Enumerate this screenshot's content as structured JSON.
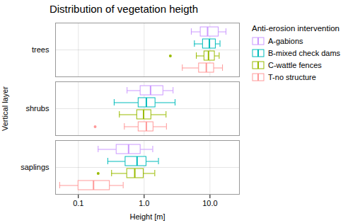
{
  "chart_data": {
    "type": "boxplot",
    "orientation": "horizontal",
    "title": "Distribution of vegetation heigth",
    "xlabel": "Height [m]",
    "ylabel": "Vertical layer",
    "legend_title": "Anti-erosion intervention",
    "legend": "right",
    "grid": true,
    "log": "x",
    "categories": [
      "saplings",
      "shrubs",
      "trees"
    ],
    "xlim": [
      0.045,
      28
    ],
    "xticks": [
      0.1,
      {
        "value": 1,
        "label": "1.0"
      },
      {
        "value": 10,
        "label": "10.0"
      }
    ],
    "series": [
      {
        "name": "A-gabions",
        "color": "#CC99FF",
        "values": [
          {
            "whislo": 0.2,
            "q1": 0.38,
            "med": 0.58,
            "q3": 0.88,
            "whishi": 1.35,
            "fliers": []
          },
          {
            "whislo": 0.55,
            "q1": 0.88,
            "med": 1.25,
            "q3": 1.95,
            "whishi": 2.75,
            "fliers": []
          },
          {
            "whislo": 5.2,
            "q1": 7.2,
            "med": 9.2,
            "q3": 13.5,
            "whishi": 17.5,
            "fliers": []
          }
        ]
      },
      {
        "name": "B-mixed check dams",
        "color": "#00BBBB",
        "values": [
          {
            "whislo": 0.28,
            "q1": 0.52,
            "med": 0.78,
            "q3": 1.08,
            "whishi": 1.65,
            "fliers": []
          },
          {
            "whislo": 0.35,
            "q1": 0.82,
            "med": 1.08,
            "q3": 1.48,
            "whishi": 2.95,
            "fliers": []
          },
          {
            "whislo": 5.8,
            "q1": 7.8,
            "med": 9.8,
            "q3": 12.2,
            "whishi": 14.2,
            "fliers": []
          }
        ]
      },
      {
        "name": "C-wattle fences",
        "color": "#99BB00",
        "values": [
          {
            "whislo": 0.32,
            "q1": 0.55,
            "med": 0.72,
            "q3": 0.98,
            "whishi": 1.45,
            "fliers": [
              0.2
            ]
          },
          {
            "whislo": 0.42,
            "q1": 0.78,
            "med": 0.98,
            "q3": 1.28,
            "whishi": 2.15,
            "fliers": []
          },
          {
            "whislo": 6.2,
            "q1": 8.2,
            "med": 9.5,
            "q3": 11.8,
            "whishi": 13.8,
            "fliers": [
              2.5
            ]
          }
        ]
      },
      {
        "name": "T-no structure",
        "color": "#FF9999",
        "values": [
          {
            "whislo": 0.052,
            "q1": 0.1,
            "med": 0.17,
            "q3": 0.3,
            "whishi": 0.48,
            "fliers": []
          },
          {
            "whislo": 0.5,
            "q1": 0.82,
            "med": 1.08,
            "q3": 1.38,
            "whishi": 2.18,
            "fliers": [
              0.18
            ]
          },
          {
            "whislo": 3.8,
            "q1": 6.8,
            "med": 8.8,
            "q3": 11.5,
            "whishi": 15.5,
            "fliers": []
          }
        ]
      }
    ]
  }
}
